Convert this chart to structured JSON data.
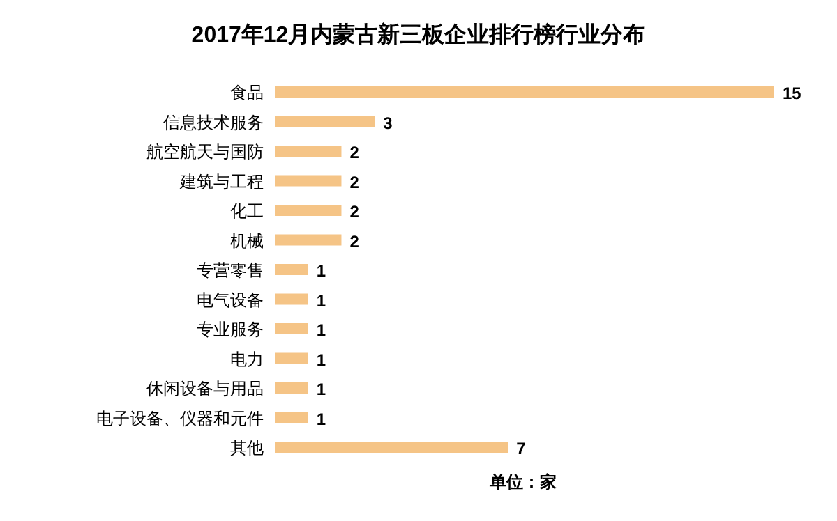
{
  "chart_data": {
    "type": "bar",
    "orientation": "horizontal",
    "title": "2017年12月内蒙古新三板企业排行榜行业分布",
    "categories": [
      "食品",
      "信息技术服务",
      "航空航天与国防",
      "建筑与工程",
      "化工",
      "机械",
      "专营零售",
      "电气设备",
      "专业服务",
      "电力",
      "休闲设备与用品",
      "电子设备、仪器和元件",
      "其他"
    ],
    "values": [
      15,
      3,
      2,
      2,
      2,
      2,
      1,
      1,
      1,
      1,
      1,
      1,
      7
    ],
    "color": "#f5c486",
    "data_labels": true,
    "annotations": [
      "单位：家"
    ]
  }
}
